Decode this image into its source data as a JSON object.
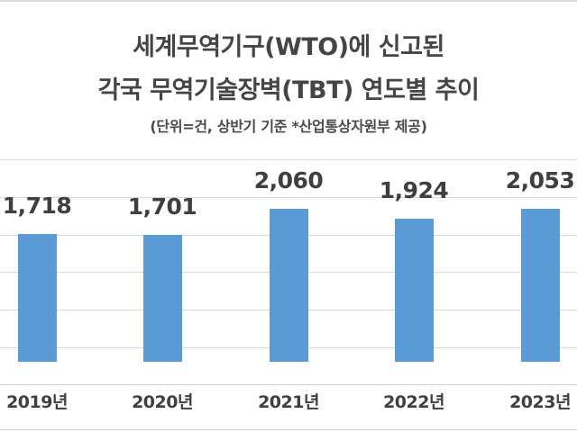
{
  "chart_data": {
    "type": "bar",
    "title": "세계무역기구(WTO)에 신고된 각국 무역기술장벽(TBT) 연도별 추이",
    "title_lines": [
      "세계무역기구(WTO)에 신고된",
      "각국 무역기술장벽(TBT) 연도별 추이"
    ],
    "subtitle": "(단위=건, 상반기 기준 *산업통상자원부 제공)",
    "categories": [
      "2019년",
      "2020년",
      "2021년",
      "2022년",
      "2023년"
    ],
    "values": [
      1718,
      1701,
      2060,
      1924,
      2053
    ],
    "value_labels": [
      "1,718",
      "1,701",
      "2,060",
      "1,924",
      "2,053"
    ],
    "xlabel": "",
    "ylabel": "",
    "ylim": [
      0,
      2500
    ],
    "grid": true,
    "legend": "none",
    "bar_color": "#5B9BD5"
  },
  "colors": {
    "bar": "#5B9BD5",
    "text": "#404040",
    "grid": "#d9d9d9"
  }
}
